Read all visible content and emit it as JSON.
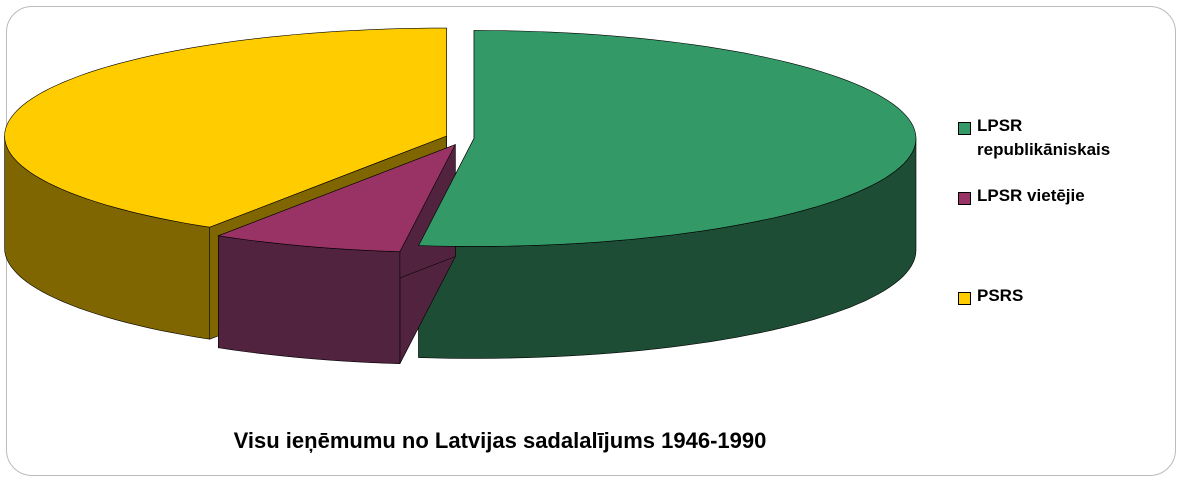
{
  "chart_data": {
    "type": "pie",
    "title": "Visu ieņēmumu no Latvijas sadalalījums 1946-1990",
    "categories": [
      "LPSR republikāniskais",
      "LPSR vietējie",
      "PSRS"
    ],
    "values": [
      52,
      7,
      41
    ],
    "colors": [
      "#339966",
      "#993366",
      "#ffcc00"
    ],
    "side_colors": [
      "#1e4d35",
      "#52233f",
      "#7f6600"
    ],
    "legend": "right"
  }
}
